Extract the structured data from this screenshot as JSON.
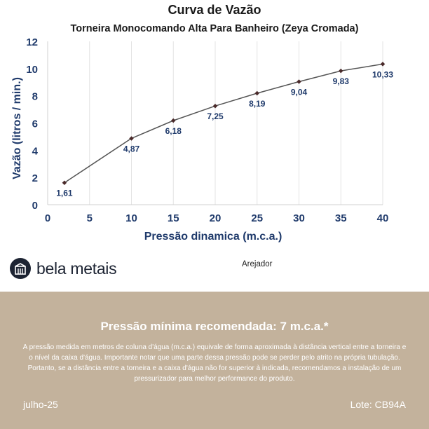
{
  "chart_data": {
    "type": "line",
    "title": "Curva de Vazão",
    "subtitle": "Torneira Monocomando Alta Para Banheiro (Zeya Cromada)",
    "xlabel": "Pressão dinamica (m.c.a.)",
    "ylabel": "Vazão (litros / min.)",
    "xlim": [
      0,
      40
    ],
    "ylim": [
      0,
      12
    ],
    "x_ticks": [
      "0",
      "5",
      "10",
      "15",
      "20",
      "25",
      "30",
      "35",
      "40"
    ],
    "y_ticks": [
      "0",
      "2",
      "4",
      "6",
      "8",
      "10",
      "12"
    ],
    "grid": "vertical gridlines",
    "legend_position": "bottom",
    "series": [
      {
        "name": "Arejador",
        "color": "#555555",
        "marker_color": "#4a2a2a",
        "x": [
          2,
          10,
          15,
          20,
          25,
          30,
          35,
          40
        ],
        "y": [
          1.61,
          4.87,
          6.18,
          7.25,
          8.19,
          9.04,
          9.83,
          10.33
        ],
        "labels": [
          "1,61",
          "4,87",
          "6,18",
          "7,25",
          "8,19",
          "9,04",
          "9,83",
          "10,33"
        ]
      }
    ]
  },
  "brand": {
    "name": "bela metais",
    "icon": "building-icon"
  },
  "footer": {
    "title": "Pressão mínima recomendada: 7 m.c.a.*",
    "body": "A pressão medida em metros de coluna d'água (m.c.a.) equivale de forma aproximada à distância vertical entre a torneira e o nível da caixa d'água. Importante notar que uma parte dessa pressão pode se perder pelo atrito na própria tubulação. Portanto, se a distância entre a torneira e a caixa d'água não for superior à indicada, recomendamos a instalação de um pressurizador para melhor performance do produto.",
    "date": "julho-25",
    "lot": "Lote: CB94A"
  },
  "colors": {
    "navy": "#1f3a6b",
    "footer_bg": "#c3b29c",
    "brand_dark": "#1d2433"
  }
}
